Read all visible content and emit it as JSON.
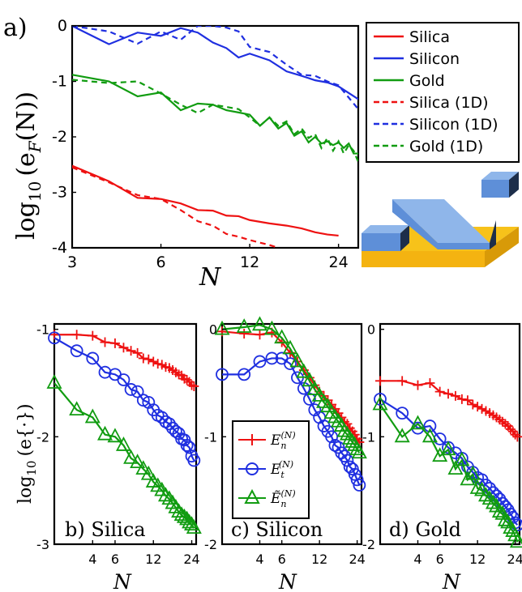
{
  "chart_data": [
    {
      "type": "line",
      "panel_label": "a)",
      "xlabel": "N",
      "ylabel": "log10 (eF(N))",
      "xscale": "log",
      "xlim": [
        3,
        28
      ],
      "ylim": [
        -4,
        0
      ],
      "xticks": [
        "3",
        "6",
        "12",
        "24"
      ],
      "yticks": [
        "0",
        "-1",
        "-2",
        "-3",
        "-4"
      ],
      "legend_placement": "outside-right",
      "colors": {
        "Silica": "#ee1111",
        "Silicon": "#1f2fe0",
        "Gold": "#119c11"
      },
      "series": [
        {
          "name": "Silica",
          "style": "solid",
          "color": "#ee1111",
          "x": [
            3,
            4,
            5,
            6,
            7,
            8,
            9,
            10,
            11,
            12,
            14,
            16,
            18,
            20,
            22,
            24
          ],
          "y": [
            -2.52,
            -2.8,
            -3.1,
            -3.12,
            -3.2,
            -3.32,
            -3.33,
            -3.42,
            -3.43,
            -3.5,
            -3.56,
            -3.6,
            -3.65,
            -3.72,
            -3.76,
            -3.78
          ]
        },
        {
          "name": "Silicon",
          "style": "solid",
          "color": "#1f2fe0",
          "x": [
            3,
            4,
            5,
            6,
            7,
            8,
            9,
            10,
            11,
            12,
            14,
            16,
            18,
            20,
            22,
            24,
            28
          ],
          "y": [
            0,
            -0.33,
            -0.12,
            -0.18,
            -0.04,
            -0.12,
            -0.3,
            -0.4,
            -0.57,
            -0.5,
            -0.62,
            -0.82,
            -0.9,
            -0.98,
            -1.02,
            -1.09,
            -1.32
          ]
        },
        {
          "name": "Gold",
          "style": "solid",
          "color": "#119c11",
          "x": [
            3,
            4,
            5,
            6,
            7,
            8,
            9,
            10,
            11,
            12,
            13,
            14,
            15,
            16,
            17,
            18,
            19,
            20,
            21,
            22,
            23,
            24,
            25,
            26,
            27,
            28
          ],
          "y": [
            -0.88,
            -1.0,
            -1.27,
            -1.2,
            -1.52,
            -1.4,
            -1.42,
            -1.52,
            -1.56,
            -1.6,
            -1.8,
            -1.65,
            -1.85,
            -1.75,
            -1.98,
            -1.9,
            -2.1,
            -2.0,
            -2.12,
            -2.08,
            -2.15,
            -2.1,
            -2.2,
            -2.12,
            -2.3,
            -2.3
          ]
        },
        {
          "name": "Silica (1D)",
          "style": "dashed",
          "color": "#ee1111",
          "x": [
            3,
            4,
            5,
            6,
            7,
            8,
            9,
            10,
            11,
            12,
            14,
            15
          ],
          "y": [
            -2.55,
            -2.82,
            -3.05,
            -3.12,
            -3.32,
            -3.52,
            -3.6,
            -3.75,
            -3.8,
            -3.86,
            -3.95,
            -4.0
          ]
        },
        {
          "name": "Silicon (1D)",
          "style": "dashed",
          "color": "#1f2fe0",
          "x": [
            3,
            4,
            5,
            6,
            7,
            8,
            9,
            10,
            11,
            12,
            14,
            16,
            18,
            20,
            22,
            24,
            28
          ],
          "y": [
            0,
            -0.1,
            -0.32,
            -0.1,
            -0.25,
            0,
            0,
            -0.03,
            -0.1,
            -0.38,
            -0.47,
            -0.7,
            -0.88,
            -0.9,
            -1.0,
            -1.07,
            -1.5
          ]
        },
        {
          "name": "Gold (1D)",
          "style": "dashed",
          "color": "#119c11",
          "x": [
            3,
            4,
            5,
            6,
            7,
            8,
            9,
            10,
            11,
            12,
            13,
            14,
            15,
            16,
            17,
            18,
            19,
            20,
            21,
            22,
            23,
            24,
            25,
            26,
            27,
            28
          ],
          "y": [
            -0.97,
            -1.03,
            -1.0,
            -1.22,
            -1.42,
            -1.57,
            -1.42,
            -1.46,
            -1.5,
            -1.65,
            -1.8,
            -1.65,
            -1.8,
            -1.72,
            -1.95,
            -1.85,
            -2.02,
            -1.95,
            -2.2,
            -2.02,
            -2.25,
            -2.08,
            -2.3,
            -2.15,
            -2.25,
            -2.45
          ]
        }
      ]
    },
    {
      "type": "line",
      "panel_label": "b) Silica",
      "xlabel": "N",
      "ylabel": "log10 (e{·})",
      "xscale": "log",
      "xlim": [
        2,
        26
      ],
      "ylim": [
        -3,
        -0.95
      ],
      "xticks": [
        "4",
        "6",
        "12",
        "24"
      ],
      "yticks": [
        "-1",
        "-2",
        "-3"
      ],
      "series": [
        {
          "name": "E_n^(N)",
          "marker": "plus",
          "color": "#ee1111",
          "x": [
            2,
            3,
            4,
            5,
            6,
            7,
            8,
            9,
            10,
            11,
            12,
            13,
            14,
            15,
            16,
            17,
            18,
            19,
            20,
            21,
            22,
            23,
            24,
            25
          ],
          "y": [
            -1.05,
            -1.05,
            -1.06,
            -1.12,
            -1.13,
            -1.17,
            -1.2,
            -1.22,
            -1.27,
            -1.28,
            -1.3,
            -1.32,
            -1.33,
            -1.35,
            -1.36,
            -1.38,
            -1.4,
            -1.42,
            -1.43,
            -1.46,
            -1.47,
            -1.49,
            -1.52,
            -1.53
          ]
        },
        {
          "name": "E_t^(N)",
          "marker": "circle",
          "color": "#1f2fe0",
          "x": [
            2,
            3,
            4,
            5,
            6,
            7,
            8,
            9,
            10,
            11,
            12,
            13,
            14,
            15,
            16,
            17,
            18,
            19,
            20,
            21,
            22,
            23,
            24,
            25
          ],
          "y": [
            -1.08,
            -1.2,
            -1.27,
            -1.4,
            -1.42,
            -1.47,
            -1.56,
            -1.58,
            -1.66,
            -1.68,
            -1.75,
            -1.8,
            -1.82,
            -1.86,
            -1.88,
            -1.92,
            -1.95,
            -1.97,
            -2.02,
            -2.03,
            -2.08,
            -2.1,
            -2.18,
            -2.22
          ]
        },
        {
          "name": "Ẽ_n^(N)",
          "marker": "triangle",
          "color": "#119c11",
          "x": [
            2,
            3,
            4,
            5,
            6,
            7,
            8,
            9,
            10,
            11,
            12,
            13,
            14,
            15,
            16,
            17,
            18,
            19,
            20,
            21,
            22,
            23,
            24,
            25
          ],
          "y": [
            -1.5,
            -1.75,
            -1.82,
            -1.98,
            -2.0,
            -2.08,
            -2.2,
            -2.24,
            -2.3,
            -2.35,
            -2.42,
            -2.46,
            -2.5,
            -2.55,
            -2.58,
            -2.62,
            -2.66,
            -2.7,
            -2.73,
            -2.75,
            -2.77,
            -2.8,
            -2.82,
            -2.85
          ]
        }
      ]
    },
    {
      "type": "line",
      "panel_label": "c) Silicon",
      "xlabel": "N",
      "xscale": "log",
      "xlim": [
        2,
        26
      ],
      "ylim": [
        -2,
        0.05
      ],
      "xticks": [
        "4",
        "6",
        "12",
        "24"
      ],
      "yticks": [
        "0",
        "-1",
        "-2"
      ],
      "legend": [
        "E_n^(N)",
        "E_t^(N)",
        "Ẽ_n^(N)"
      ],
      "series": [
        {
          "name": "E_n^(N)",
          "marker": "plus",
          "color": "#ee1111",
          "x": [
            2,
            3,
            4,
            5,
            6,
            7,
            8,
            9,
            10,
            11,
            12,
            13,
            14,
            15,
            16,
            17,
            18,
            19,
            20,
            21,
            22,
            23,
            24,
            25
          ],
          "y": [
            -0.02,
            -0.04,
            -0.05,
            -0.03,
            -0.12,
            -0.22,
            -0.3,
            -0.38,
            -0.45,
            -0.52,
            -0.58,
            -0.62,
            -0.66,
            -0.7,
            -0.74,
            -0.78,
            -0.82,
            -0.86,
            -0.88,
            -0.92,
            -0.95,
            -0.98,
            -1.02,
            -1.05
          ]
        },
        {
          "name": "E_t^(N)",
          "marker": "circle",
          "color": "#1f2fe0",
          "x": [
            2,
            3,
            4,
            5,
            6,
            7,
            8,
            9,
            10,
            11,
            12,
            13,
            14,
            15,
            16,
            17,
            18,
            19,
            20,
            21,
            22,
            23,
            24,
            25
          ],
          "y": [
            -0.42,
            -0.42,
            -0.3,
            -0.27,
            -0.27,
            -0.32,
            -0.45,
            -0.55,
            -0.65,
            -0.75,
            -0.82,
            -0.9,
            -0.95,
            -1.0,
            -1.08,
            -1.1,
            -1.15,
            -1.18,
            -1.22,
            -1.28,
            -1.3,
            -1.35,
            -1.4,
            -1.45
          ]
        },
        {
          "name": "Ẽ_n^(N)",
          "marker": "triangle",
          "color": "#119c11",
          "x": [
            2,
            3,
            4,
            5,
            6,
            7,
            8,
            9,
            10,
            11,
            12,
            13,
            14,
            15,
            16,
            17,
            18,
            19,
            20,
            21,
            22,
            23,
            24,
            25
          ],
          "y": [
            0.0,
            0.02,
            0.04,
            0.0,
            -0.08,
            -0.18,
            -0.3,
            -0.4,
            -0.48,
            -0.56,
            -0.62,
            -0.68,
            -0.72,
            -0.78,
            -0.82,
            -0.86,
            -0.9,
            -0.95,
            -0.98,
            -1.02,
            -1.05,
            -1.08,
            -1.12,
            -1.15
          ]
        }
      ]
    },
    {
      "type": "line",
      "panel_label": "d) Gold",
      "xlabel": "N",
      "xscale": "log",
      "xlim": [
        2,
        26
      ],
      "ylim": [
        -2,
        0.05
      ],
      "xticks": [
        "4",
        "6",
        "12",
        "24"
      ],
      "yticks": [
        "0",
        "-1",
        "-2"
      ],
      "series": [
        {
          "name": "E_n^(N)",
          "marker": "plus",
          "color": "#ee1111",
          "x": [
            2,
            3,
            4,
            5,
            6,
            7,
            8,
            9,
            10,
            11,
            12,
            13,
            14,
            15,
            16,
            17,
            18,
            19,
            20,
            21,
            22,
            23,
            24,
            25
          ],
          "y": [
            -0.48,
            -0.48,
            -0.52,
            -0.5,
            -0.58,
            -0.6,
            -0.62,
            -0.65,
            -0.66,
            -0.7,
            -0.72,
            -0.74,
            -0.76,
            -0.78,
            -0.8,
            -0.82,
            -0.84,
            -0.86,
            -0.88,
            -0.9,
            -0.93,
            -0.95,
            -0.98,
            -1.0
          ]
        },
        {
          "name": "E_t^(N)",
          "marker": "circle",
          "color": "#1f2fe0",
          "x": [
            2,
            3,
            4,
            5,
            6,
            7,
            8,
            9,
            10,
            11,
            12,
            13,
            14,
            15,
            16,
            17,
            18,
            19,
            20,
            21,
            22,
            23,
            24,
            25
          ],
          "y": [
            -0.65,
            -0.78,
            -0.92,
            -0.9,
            -1.02,
            -1.1,
            -1.15,
            -1.2,
            -1.28,
            -1.33,
            -1.38,
            -1.4,
            -1.45,
            -1.48,
            -1.52,
            -1.55,
            -1.58,
            -1.62,
            -1.65,
            -1.68,
            -1.72,
            -1.75,
            -1.8,
            -1.82
          ]
        },
        {
          "name": "Ẽ_n^(N)",
          "marker": "triangle",
          "color": "#119c11",
          "x": [
            2,
            3,
            4,
            5,
            6,
            7,
            8,
            9,
            10,
            11,
            12,
            13,
            14,
            15,
            16,
            17,
            18,
            19,
            20,
            21,
            22,
            23,
            24,
            25
          ],
          "y": [
            -0.7,
            -1.0,
            -0.88,
            -1.0,
            -1.18,
            -1.12,
            -1.3,
            -1.22,
            -1.4,
            -1.35,
            -1.48,
            -1.5,
            -1.55,
            -1.58,
            -1.62,
            -1.65,
            -1.7,
            -1.72,
            -1.78,
            -1.8,
            -1.85,
            -1.88,
            -1.92,
            -1.98
          ]
        }
      ]
    }
  ],
  "figure": {
    "a_label": "a)",
    "a_ylabel_main": "log",
    "a_ylabel_sub": "10",
    "a_ylabel_rest": "(e",
    "a_ylabel_F": "F",
    "a_ylabel_end": "(N))",
    "a_xlabel": "N",
    "b_ylabel_main": "log",
    "b_ylabel_sub": "10",
    "b_ylabel_rest": "(e{·})",
    "bcd_xlabel": "N",
    "legend_a": [
      "Silica",
      "Silicon",
      "Gold",
      "Silica (1D)",
      "Silicon (1D)",
      "Gold (1D)"
    ],
    "legend_c": [
      "E",
      "E",
      "Ẽ"
    ],
    "legend_c_sub": [
      "n",
      "t",
      "n"
    ],
    "legend_c_sup": [
      "(N)",
      "(N)",
      "(N)"
    ],
    "b_panel": "b)  Silica",
    "c_panel": "c)  Silicon",
    "d_panel": "d)  Gold"
  }
}
